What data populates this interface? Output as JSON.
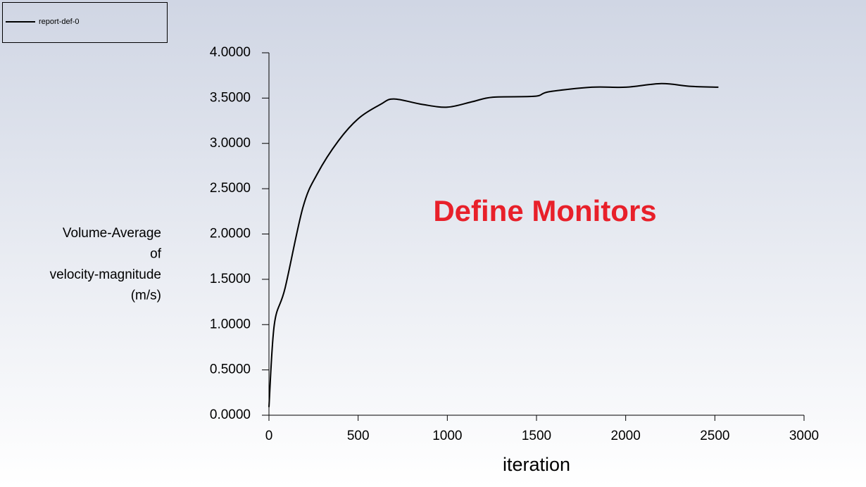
{
  "chart_data": {
    "type": "line",
    "xlabel": "iteration",
    "ylabel": [
      "Volume-Average",
      "of",
      "velocity-magnitude",
      "(m/s)"
    ],
    "annotation": "Define Monitors",
    "legend": "top-left",
    "xlim": [
      0,
      3000
    ],
    "xticks": [
      0,
      500,
      1000,
      1500,
      2000,
      2500,
      3000
    ],
    "ylim": [
      0,
      4
    ],
    "yticks": [
      {
        "value": 0,
        "label": "0.0000"
      },
      {
        "value": 0.5,
        "label": "0.5000"
      },
      {
        "value": 1,
        "label": "1.0000"
      },
      {
        "value": 1.5,
        "label": "1.5000"
      },
      {
        "value": 2,
        "label": "2.0000"
      },
      {
        "value": 2.5,
        "label": "2.5000"
      },
      {
        "value": 3,
        "label": "3.0000"
      },
      {
        "value": 3.5,
        "label": "3.5000"
      },
      {
        "value": 4,
        "label": "4.0000"
      }
    ],
    "x": [
      0,
      30,
      90,
      190,
      270,
      390,
      505,
      625,
      700,
      860,
      1000,
      1140,
      1255,
      1490,
      1570,
      1810,
      2000,
      2200,
      2360,
      2520
    ],
    "series": [
      {
        "name": "report-def-0",
        "color": "#000000",
        "values": [
          0.09,
          1.0,
          1.4,
          2.29,
          2.66,
          3.03,
          3.28,
          3.43,
          3.49,
          3.43,
          3.4,
          3.46,
          3.51,
          3.52,
          3.57,
          3.62,
          3.62,
          3.66,
          3.63,
          3.62
        ]
      }
    ]
  }
}
